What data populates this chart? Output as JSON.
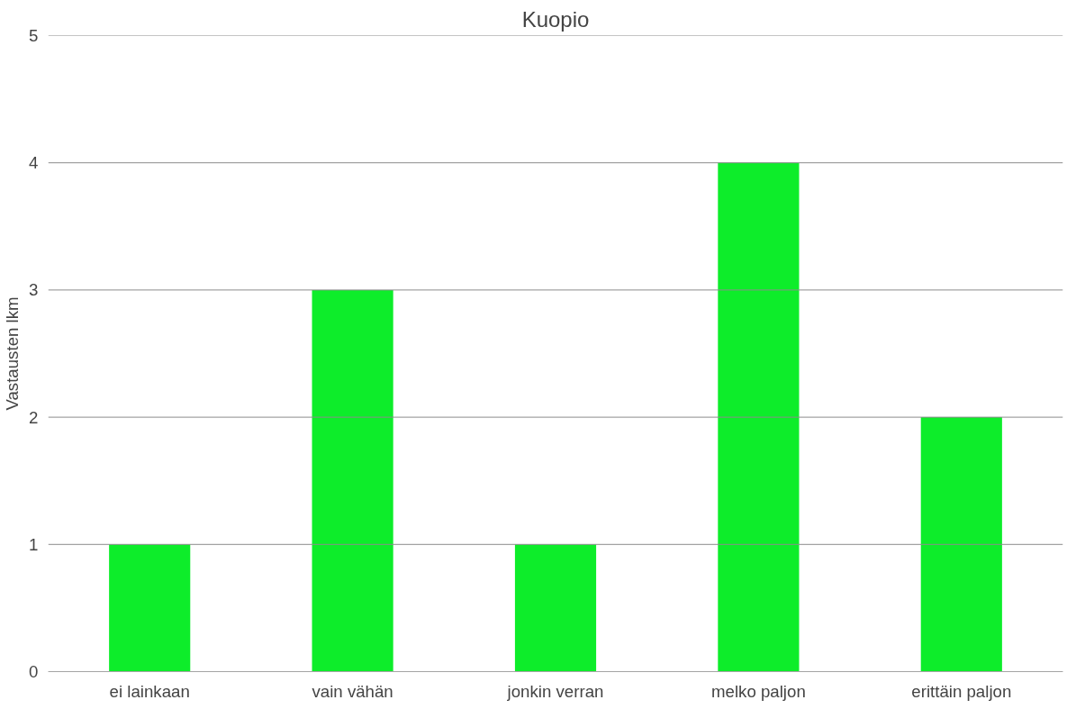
{
  "chart_data": {
    "type": "bar",
    "title": "Kuopio",
    "ylabel": "Vastausten lkm",
    "categories": [
      "ei lainkaan",
      "vain vähän",
      "jonkin verran",
      "melko paljon",
      "erittäin paljon"
    ],
    "values": [
      1,
      3,
      1,
      4,
      2
    ],
    "color": "#0ded2a",
    "ylim": [
      0,
      5
    ],
    "yticks": [
      0,
      1,
      2,
      3,
      4,
      5
    ],
    "grid": "y"
  }
}
